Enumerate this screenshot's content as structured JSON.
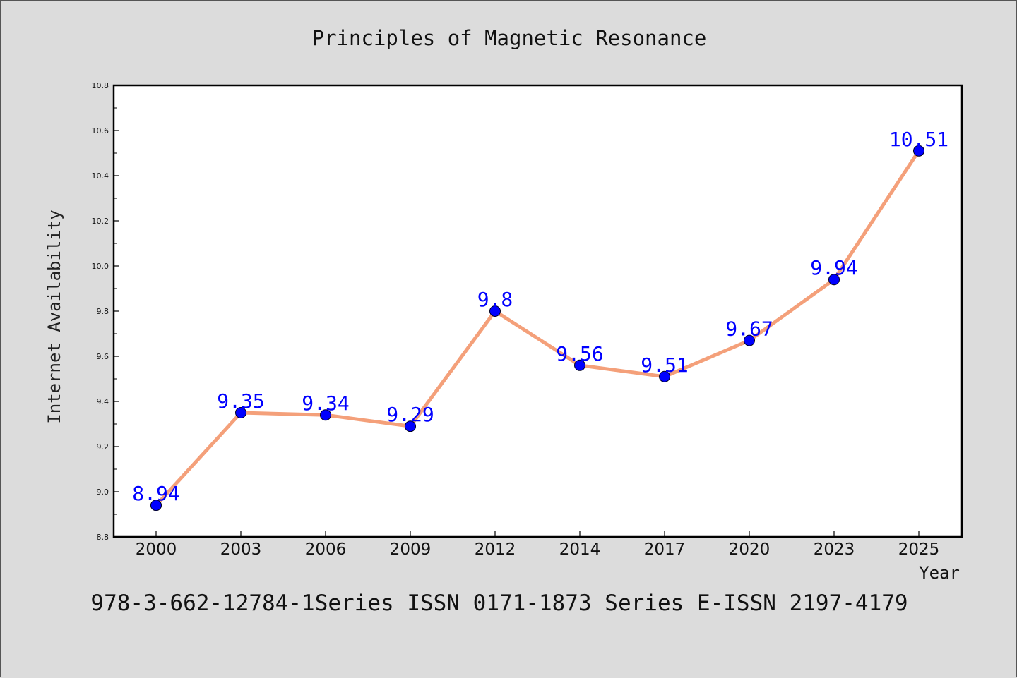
{
  "chart_data": {
    "type": "line",
    "title": "Principles of Magnetic Resonance",
    "xlabel": "Year",
    "ylabel": "Internet Availability",
    "categories": [
      "2000",
      "2003",
      "2006",
      "2009",
      "2012",
      "2014",
      "2017",
      "2020",
      "2023",
      "2025"
    ],
    "series": [
      {
        "values": [
          8.94,
          9.35,
          9.34,
          9.29,
          9.8,
          9.56,
          9.51,
          9.67,
          9.94,
          10.51
        ],
        "data_labels": [
          "8.94",
          "9.35",
          "9.34",
          "9.29",
          "9.8",
          "9.56",
          "9.51",
          "9.67",
          "9.94",
          "10.51"
        ],
        "line_color": "#f4a07a",
        "marker_color": "#0000ff"
      }
    ],
    "ylim": [
      8.8,
      10.8
    ],
    "yticks": [
      "8.8",
      "9.0",
      "9.2",
      "9.4",
      "9.6",
      "9.8",
      "10.0",
      "10.2",
      "10.4",
      "10.6",
      "10.8"
    ],
    "grid": false,
    "legend": "none"
  },
  "footer": {
    "text": "978-3-662-12784-1Series ISSN 0171-1873 Series E-ISSN 2197-4179"
  },
  "colors": {
    "background": "#dcdcdc",
    "plot_background": "#ffffff",
    "line": "#f4a07a",
    "marker": "#0000ff",
    "data_label": "#0000ff"
  }
}
